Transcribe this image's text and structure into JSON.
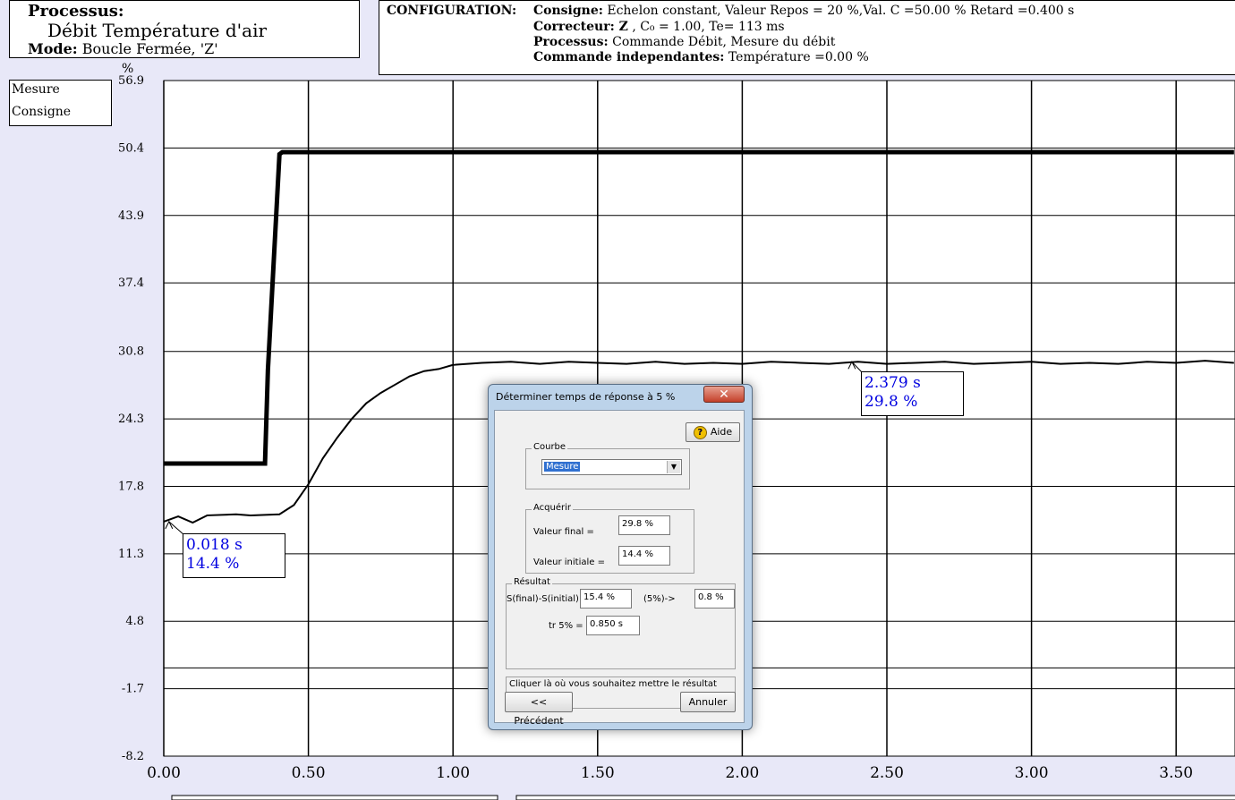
{
  "header": {
    "processus_label": "Processus:",
    "processus_name": "Débit Température d'air",
    "mode_label": "Mode:",
    "mode_value": "Boucle Fermée, 'Z'"
  },
  "configuration": {
    "heading": "CONFIGURATION:",
    "consigne_label": "Consigne:",
    "consigne_value": "Echelon constant, Valeur Repos = 20 %,Val. C =50.00 % Retard =0.400 s",
    "correcteur_label": "Correcteur: Z",
    "correcteur_value": ", C₀ = 1.00, Te= 113 ms",
    "processus_label": "Processus:",
    "processus_value": "Commande Débit, Mesure du débit",
    "commande_label": "Commande independantes:",
    "commande_value": "Température =0.00 %"
  },
  "legend": [
    "Mesure",
    "Consigne"
  ],
  "chart_data": {
    "type": "line",
    "ylabel": "%",
    "xlim": [
      0,
      3.7
    ],
    "ylim": [
      -8.2,
      56.9
    ],
    "y_ticks": [
      "56.9",
      "50.4",
      "43.9",
      "37.4",
      "30.8",
      "24.3",
      "17.8",
      "11.3",
      "4.8",
      "-1.7",
      "-8.2"
    ],
    "x_ticks": [
      "0.00",
      "0.50",
      "1.00",
      "1.50",
      "2.00",
      "2.50",
      "3.00",
      "3.50"
    ],
    "series": [
      {
        "name": "Consigne",
        "x": [
          0,
          0.35,
          0.36,
          0.4,
          0.41,
          3.7
        ],
        "y": [
          20,
          20,
          29,
          49.8,
          50,
          50
        ]
      },
      {
        "name": "Mesure",
        "x": [
          0,
          0.05,
          0.1,
          0.15,
          0.25,
          0.3,
          0.4,
          0.45,
          0.5,
          0.55,
          0.6,
          0.65,
          0.7,
          0.75,
          0.8,
          0.85,
          0.9,
          0.95,
          1.0,
          1.1,
          1.2,
          1.3,
          1.4,
          1.5,
          1.6,
          1.7,
          1.8,
          1.9,
          2.0,
          2.1,
          2.2,
          2.3,
          2.4,
          2.5,
          2.6,
          2.7,
          2.8,
          2.9,
          3.0,
          3.1,
          3.2,
          3.3,
          3.4,
          3.5,
          3.6,
          3.7
        ],
        "y": [
          14.4,
          14.9,
          14.3,
          15.0,
          15.1,
          15.0,
          15.1,
          16.0,
          18.0,
          20.5,
          22.5,
          24.3,
          25.8,
          26.8,
          27.6,
          28.4,
          28.9,
          29.1,
          29.5,
          29.7,
          29.8,
          29.6,
          29.8,
          29.7,
          29.6,
          29.8,
          29.6,
          29.7,
          29.6,
          29.8,
          29.7,
          29.6,
          29.8,
          29.6,
          29.7,
          29.8,
          29.6,
          29.7,
          29.8,
          29.6,
          29.7,
          29.6,
          29.8,
          29.7,
          29.9,
          29.7
        ]
      }
    ],
    "annotations": [
      {
        "x": 0.018,
        "y": 14.4,
        "line1": "0.018 s",
        "line2": "14.4 %"
      },
      {
        "x": 2.379,
        "y": 29.8,
        "line1": "2.379 s",
        "line2": "29.8 %"
      }
    ]
  },
  "dialog": {
    "title": "Déterminer temps de réponse à 5 %",
    "close_label": "✕",
    "help_label": "Aide",
    "courbe_group": "Courbe",
    "courbe_selected": "Mesure",
    "acquerir_group": "Acquérir",
    "valeur_final_label": "Valeur final =",
    "valeur_final_value": "29.8 %",
    "valeur_initiale_label": "Valeur initiale =",
    "valeur_initiale_value": "14.4 %",
    "resultat_group": "Résultat",
    "diff_label": "S(final)-S(initial) =",
    "diff_value": "15.4 %",
    "five_label": "(5%)->",
    "five_value": "0.8 %",
    "tr_label": "tr 5% =",
    "tr_value": "0.850 s",
    "message": "Cliquer là où vous souhaitez mettre le résultat",
    "prev_label": "<< Précédent",
    "cancel_label": "Annuler"
  }
}
